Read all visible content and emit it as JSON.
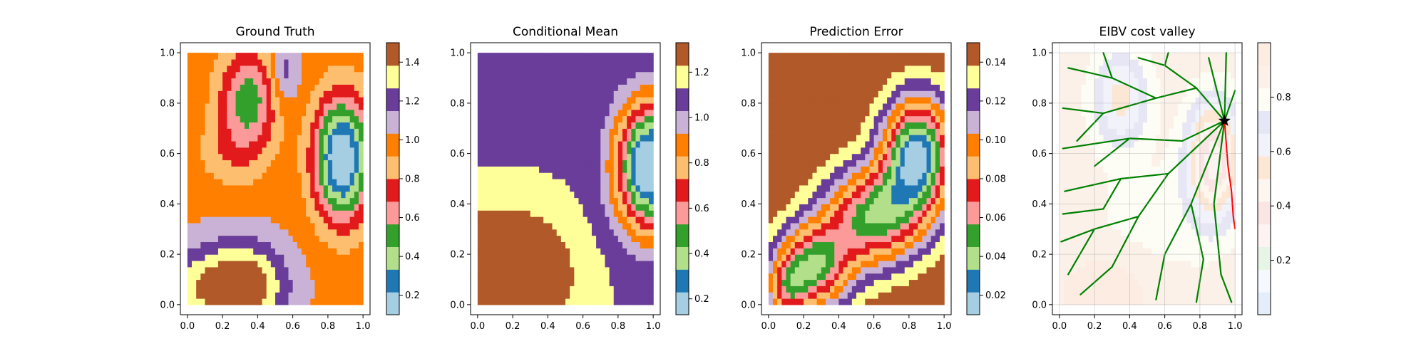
{
  "chart_data": [
    {
      "type": "heatmap",
      "title": "Ground Truth",
      "xlabel": "",
      "ylabel": "",
      "xlim": [
        -0.04,
        1.04
      ],
      "ylim": [
        -0.04,
        1.04
      ],
      "x_ticks": [
        "0.0",
        "0.2",
        "0.4",
        "0.6",
        "0.8",
        "1.0"
      ],
      "y_ticks": [
        "0.0",
        "0.2",
        "0.4",
        "0.6",
        "0.8",
        "1.0"
      ],
      "colorbar": {
        "min": 0.1,
        "max": 1.5,
        "ticks": [
          "0.2",
          "0.4",
          "0.6",
          "0.8",
          "1.0",
          "1.2",
          "1.4"
        ]
      },
      "field": {
        "base": 1.0,
        "components": [
          {
            "x": 0.88,
            "y": 0.58,
            "amp": -0.95,
            "sx": 0.11,
            "sy": 0.17
          },
          {
            "x": 0.35,
            "y": 0.82,
            "amp": -0.5,
            "sx": 0.12,
            "sy": 0.14
          },
          {
            "x": 0.55,
            "y": 0.92,
            "amp": 0.25,
            "sx": 0.06,
            "sy": 0.1
          },
          {
            "x": 0.3,
            "y": 0.08,
            "amp": 0.55,
            "sx": 0.18,
            "sy": 0.12
          },
          {
            "x": 0.0,
            "y": 0.05,
            "amp": 0.2,
            "sx": 0.12,
            "sy": 0.12
          },
          {
            "x": 0.25,
            "y": 0.6,
            "amp": -0.15,
            "sx": 0.14,
            "sy": 0.1
          }
        ]
      },
      "overlay": null
    },
    {
      "type": "heatmap",
      "title": "Conditional Mean",
      "xlabel": "",
      "ylabel": "",
      "xlim": [
        -0.04,
        1.04
      ],
      "ylim": [
        -0.04,
        1.04
      ],
      "x_ticks": [
        "0.0",
        "0.2",
        "0.4",
        "0.6",
        "0.8",
        "1.0"
      ],
      "y_ticks": [
        "0.0",
        "0.2",
        "0.4",
        "0.6",
        "0.8",
        "1.0"
      ],
      "colorbar": {
        "min": 0.13,
        "max": 1.33,
        "ticks": [
          "0.2",
          "0.4",
          "0.6",
          "0.8",
          "1.0",
          "1.2"
        ]
      },
      "field": {
        "base": 1.12,
        "components": [
          {
            "x": 0.98,
            "y": 0.55,
            "amp": -1.1,
            "sx": 0.13,
            "sy": 0.17
          },
          {
            "x": 0.15,
            "y": 0.12,
            "amp": 0.42,
            "sx": 0.24,
            "sy": 0.16
          },
          {
            "x": 0.35,
            "y": 0.95,
            "amp": -0.05,
            "sx": 0.2,
            "sy": 0.1
          }
        ]
      },
      "overlay": null
    },
    {
      "type": "heatmap",
      "title": "Prediction Error",
      "xlabel": "",
      "ylabel": "",
      "xlim": [
        -0.04,
        1.04
      ],
      "ylim": [
        -0.04,
        1.04
      ],
      "x_ticks": [
        "0.0",
        "0.2",
        "0.4",
        "0.6",
        "0.8",
        "1.0"
      ],
      "y_ticks": [
        "0.0",
        "0.2",
        "0.4",
        "0.6",
        "0.8",
        "1.0"
      ],
      "colorbar": {
        "min": 0.01,
        "max": 0.15,
        "ticks": [
          "0.02",
          "0.04",
          "0.06",
          "0.08",
          "0.10",
          "0.12",
          "0.14"
        ]
      },
      "field": {
        "base": 0.15,
        "components": [
          {
            "x": 0.85,
            "y": 0.6,
            "amp": -0.13,
            "sx": 0.14,
            "sy": 0.16
          },
          {
            "x": 0.6,
            "y": 0.35,
            "amp": -0.1,
            "sx": 0.2,
            "sy": 0.14
          },
          {
            "x": 0.25,
            "y": 0.15,
            "amp": -0.1,
            "sx": 0.15,
            "sy": 0.12
          },
          {
            "x": 0.1,
            "y": 0.05,
            "amp": -0.05,
            "sx": 0.08,
            "sy": 0.08
          }
        ]
      },
      "overlay": null
    },
    {
      "type": "heatmap",
      "title": "EIBV cost valley",
      "xlabel": "",
      "ylabel": "",
      "xlim": [
        -0.04,
        1.04
      ],
      "ylim": [
        -0.04,
        1.04
      ],
      "x_ticks": [
        "0.0",
        "0.2",
        "0.4",
        "0.6",
        "0.8",
        "1.0"
      ],
      "y_ticks": [
        "0.0",
        "0.2",
        "0.4",
        "0.6",
        "0.8",
        "1.0"
      ],
      "colorbar": {
        "min": 0.0,
        "max": 1.0,
        "ticks": [
          "0.2",
          "0.4",
          "0.6",
          "0.8"
        ]
      },
      "field": {
        "base": 0.9,
        "components": [
          {
            "x": 0.88,
            "y": 0.58,
            "amp": -0.6,
            "sx": 0.11,
            "sy": 0.17
          },
          {
            "x": 0.35,
            "y": 0.82,
            "amp": -0.35,
            "sx": 0.12,
            "sy": 0.14
          },
          {
            "x": 0.3,
            "y": 0.08,
            "amp": 0.1,
            "sx": 0.18,
            "sy": 0.12
          },
          {
            "x": 0.5,
            "y": 0.3,
            "amp": -0.1,
            "sx": 0.3,
            "sy": 0.2
          }
        ]
      },
      "overlay": {
        "current_location": {
          "x": 0.94,
          "y": 0.73
        },
        "tree_color": "#008000",
        "path_color": "#ff0000",
        "selected_path": [
          [
            0.94,
            0.73
          ],
          [
            0.96,
            0.55
          ],
          [
            0.98,
            0.45
          ],
          [
            0.99,
            0.35
          ],
          [
            1.0,
            0.3
          ]
        ],
        "tree_edges": [
          [
            [
              0.94,
              0.73
            ],
            [
              0.78,
              0.86
            ]
          ],
          [
            [
              0.78,
              0.86
            ],
            [
              0.6,
              0.95
            ]
          ],
          [
            [
              0.6,
              0.95
            ],
            [
              0.45,
              0.98
            ]
          ],
          [
            [
              0.78,
              0.86
            ],
            [
              0.55,
              0.82
            ]
          ],
          [
            [
              0.55,
              0.82
            ],
            [
              0.3,
              0.9
            ]
          ],
          [
            [
              0.3,
              0.9
            ],
            [
              0.05,
              0.94
            ]
          ],
          [
            [
              0.55,
              0.82
            ],
            [
              0.25,
              0.76
            ]
          ],
          [
            [
              0.25,
              0.76
            ],
            [
              0.02,
              0.78
            ]
          ],
          [
            [
              0.25,
              0.76
            ],
            [
              0.1,
              0.65
            ]
          ],
          [
            [
              0.94,
              0.73
            ],
            [
              0.85,
              0.98
            ]
          ],
          [
            [
              0.94,
              0.73
            ],
            [
              0.95,
              1.0
            ]
          ],
          [
            [
              0.94,
              0.73
            ],
            [
              1.0,
              0.85
            ]
          ],
          [
            [
              0.94,
              0.73
            ],
            [
              0.7,
              0.65
            ]
          ],
          [
            [
              0.7,
              0.65
            ],
            [
              0.4,
              0.66
            ]
          ],
          [
            [
              0.4,
              0.66
            ],
            [
              0.02,
              0.62
            ]
          ],
          [
            [
              0.94,
              0.73
            ],
            [
              0.62,
              0.52
            ]
          ],
          [
            [
              0.62,
              0.52
            ],
            [
              0.35,
              0.5
            ]
          ],
          [
            [
              0.35,
              0.5
            ],
            [
              0.03,
              0.45
            ]
          ],
          [
            [
              0.62,
              0.52
            ],
            [
              0.45,
              0.35
            ]
          ],
          [
            [
              0.45,
              0.35
            ],
            [
              0.2,
              0.3
            ]
          ],
          [
            [
              0.2,
              0.3
            ],
            [
              0.01,
              0.25
            ]
          ],
          [
            [
              0.45,
              0.35
            ],
            [
              0.3,
              0.15
            ]
          ],
          [
            [
              0.3,
              0.15
            ],
            [
              0.12,
              0.04
            ]
          ],
          [
            [
              0.94,
              0.73
            ],
            [
              0.75,
              0.4
            ]
          ],
          [
            [
              0.75,
              0.4
            ],
            [
              0.6,
              0.2
            ]
          ],
          [
            [
              0.6,
              0.2
            ],
            [
              0.55,
              0.02
            ]
          ],
          [
            [
              0.75,
              0.4
            ],
            [
              0.82,
              0.18
            ]
          ],
          [
            [
              0.82,
              0.18
            ],
            [
              0.78,
              0.01
            ]
          ],
          [
            [
              0.94,
              0.73
            ],
            [
              0.88,
              0.4
            ]
          ],
          [
            [
              0.88,
              0.4
            ],
            [
              0.92,
              0.12
            ]
          ],
          [
            [
              0.92,
              0.12
            ],
            [
              0.98,
              0.01
            ]
          ],
          [
            [
              0.2,
              0.3
            ],
            [
              0.05,
              0.12
            ]
          ],
          [
            [
              0.35,
              0.5
            ],
            [
              0.25,
              0.38
            ]
          ],
          [
            [
              0.25,
              0.38
            ],
            [
              0.02,
              0.36
            ]
          ],
          [
            [
              0.4,
              0.66
            ],
            [
              0.2,
              0.55
            ]
          ],
          [
            [
              0.6,
              0.95
            ],
            [
              0.62,
              1.0
            ]
          ],
          [
            [
              0.3,
              0.9
            ],
            [
              0.25,
              1.0
            ]
          ]
        ]
      }
    }
  ]
}
